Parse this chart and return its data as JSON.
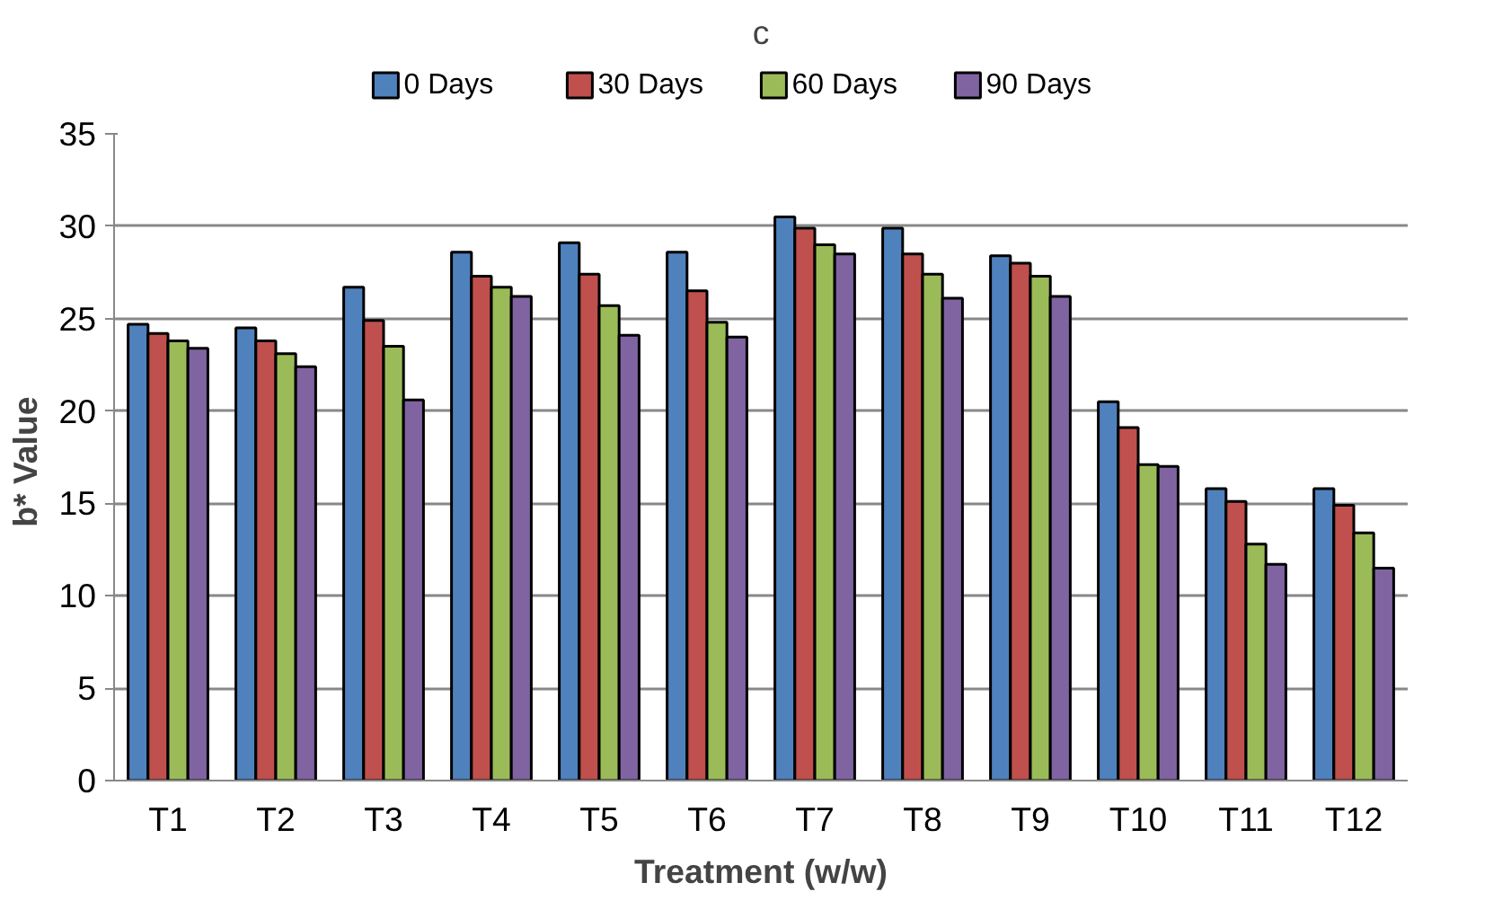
{
  "chart_data": {
    "type": "bar",
    "title": "c",
    "xlabel": "Treatment (w/w)",
    "ylabel": "b*  Value",
    "categories": [
      "T1",
      "T2",
      "T3",
      "T4",
      "T5",
      "T6",
      "T7",
      "T8",
      "T9",
      "T10",
      "T11",
      "T12"
    ],
    "series": [
      {
        "name": "0 Days",
        "color": "#4f81bd",
        "values": [
          24.7,
          24.5,
          26.7,
          28.6,
          29.1,
          28.6,
          30.5,
          29.9,
          28.4,
          20.5,
          15.8,
          15.8
        ]
      },
      {
        "name": "30 Days",
        "color": "#c0504d",
        "values": [
          24.2,
          23.8,
          24.9,
          27.3,
          27.4,
          26.5,
          29.9,
          28.5,
          28.0,
          19.1,
          15.1,
          14.9
        ]
      },
      {
        "name": "60 Days",
        "color": "#9bbb59",
        "values": [
          23.8,
          23.1,
          23.5,
          26.7,
          25.7,
          24.8,
          29.0,
          27.4,
          27.3,
          17.1,
          12.8,
          13.4
        ]
      },
      {
        "name": "90 Days",
        "color": "#8064a2",
        "values": [
          23.4,
          22.4,
          20.6,
          26.2,
          24.1,
          24.0,
          28.5,
          26.1,
          26.2,
          17.0,
          11.7,
          11.5
        ]
      }
    ],
    "ylim": [
      0,
      35
    ],
    "yticks": [
      0,
      5,
      10,
      15,
      20,
      25,
      30,
      35
    ],
    "grid": "y",
    "legend": "top"
  }
}
